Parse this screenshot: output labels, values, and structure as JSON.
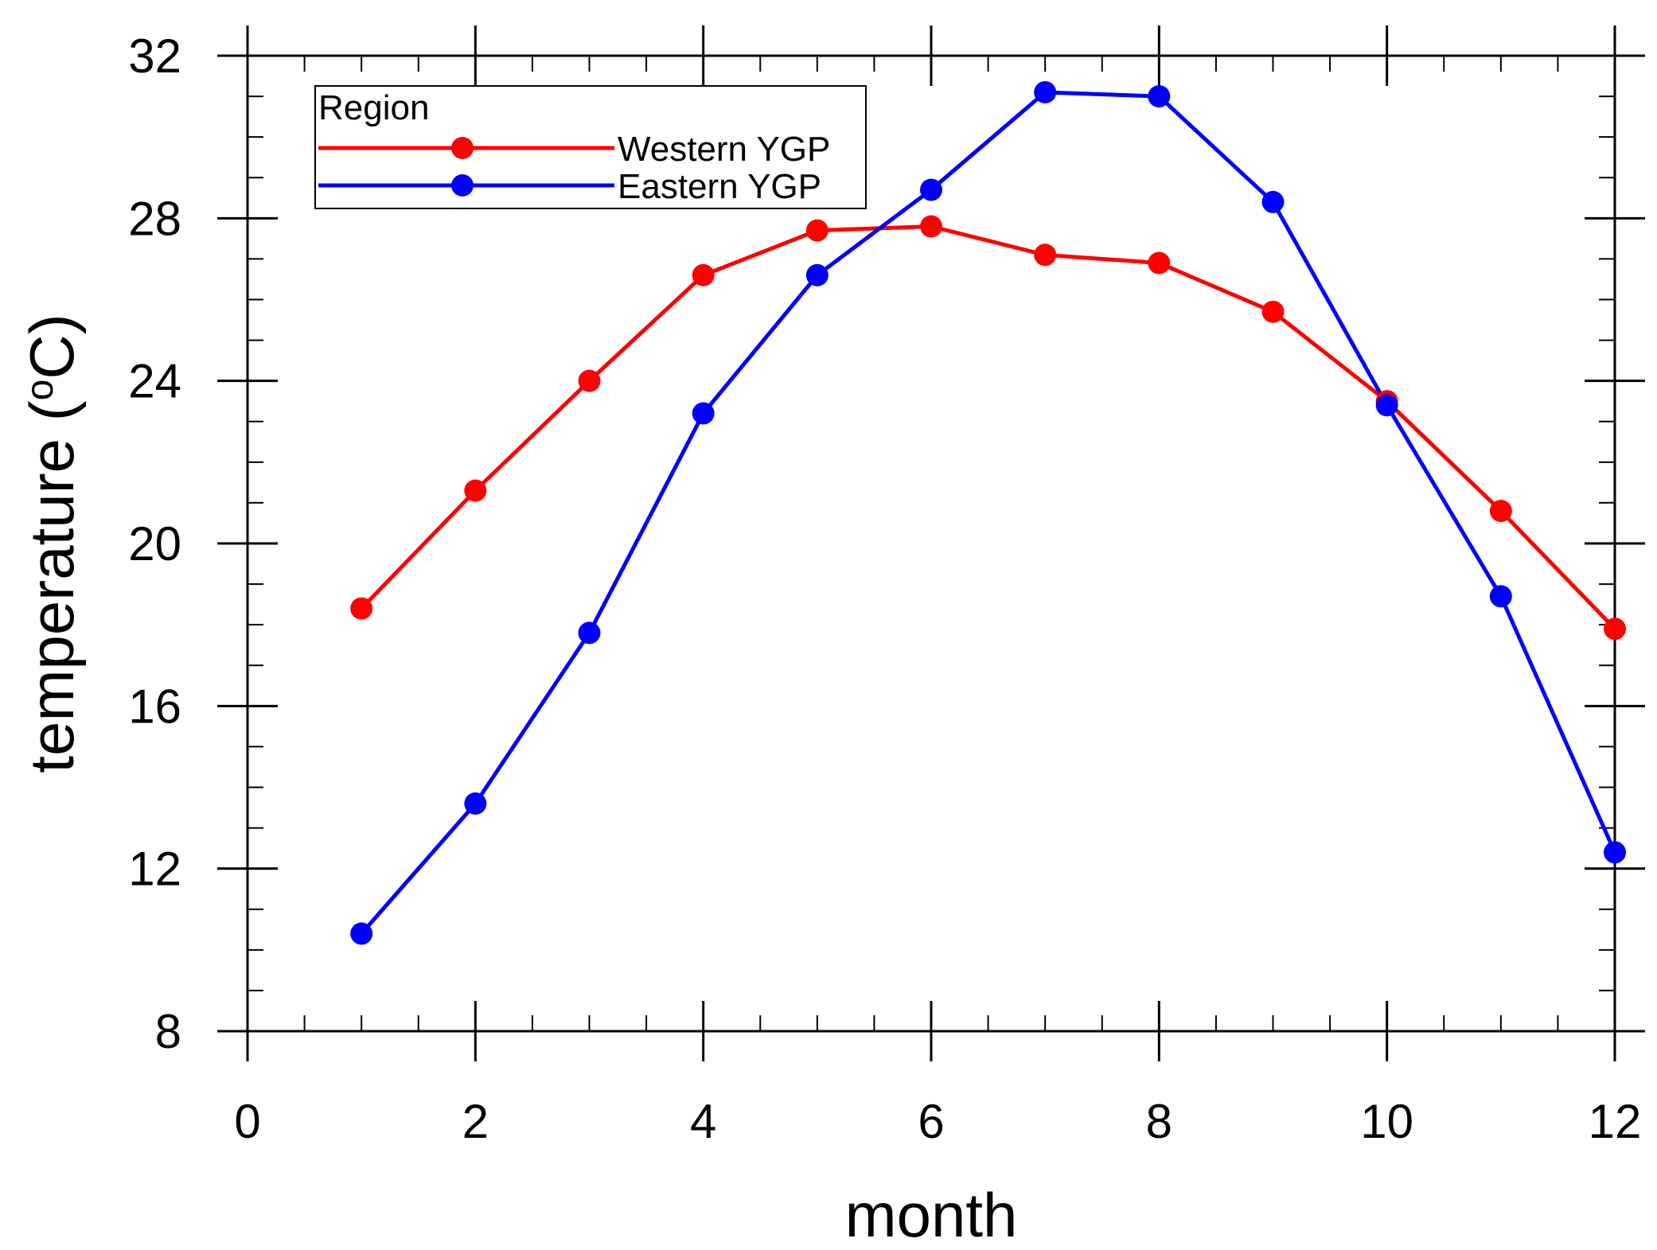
{
  "chart_data": {
    "type": "line",
    "title": "",
    "xlabel": "month",
    "ylabel_text": "temperature (",
    "ylabel_unit_sup": "o",
    "ylabel_unit": "C)",
    "xlim": [
      0,
      12
    ],
    "ylim": [
      8,
      32
    ],
    "x_major_ticks": [
      0,
      2,
      4,
      6,
      8,
      10,
      12
    ],
    "x_tick_labels": [
      "0",
      "2",
      "4",
      "6",
      "8",
      "10",
      "12"
    ],
    "y_major_ticks": [
      8,
      12,
      16,
      20,
      24,
      28,
      32
    ],
    "y_tick_labels": [
      "8",
      "12",
      "16",
      "20",
      "24",
      "28",
      "32"
    ],
    "x_minor_step": 0.5,
    "y_minor_step": 1,
    "grid": false,
    "legend_title": "Region",
    "legend_position": "top-left",
    "x": [
      1,
      2,
      3,
      4,
      5,
      6,
      7,
      8,
      9,
      10,
      11,
      12
    ],
    "series": [
      {
        "name": "Western YGP",
        "color": "#ff0000",
        "values": [
          18.4,
          21.3,
          24.0,
          26.6,
          27.7,
          27.8,
          27.1,
          26.9,
          25.7,
          23.5,
          20.8,
          17.9
        ]
      },
      {
        "name": "Eastern YGP",
        "color": "#0000ff",
        "values": [
          10.4,
          13.6,
          17.8,
          23.2,
          26.6,
          28.7,
          31.1,
          31.0,
          28.4,
          23.4,
          18.7,
          12.4
        ]
      }
    ]
  }
}
